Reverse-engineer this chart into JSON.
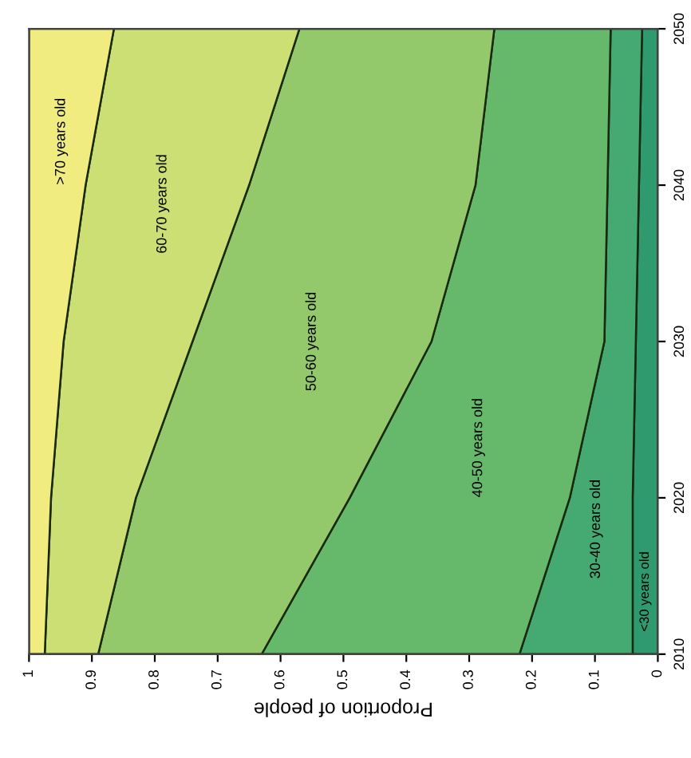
{
  "chart_data": {
    "type": "area",
    "stacked": true,
    "orientation": "horizontal",
    "xlabel": "Proportion of people",
    "categories": [
      "2050",
      "2040",
      "2030",
      "2020",
      "2010"
    ],
    "series": [
      {
        "name": "<30 years old",
        "color": "#2e9a6e",
        "values": [
          0.025,
          0.03,
          0.035,
          0.04,
          0.04
        ]
      },
      {
        "name": "30-40 years old",
        "color": "#45a972",
        "values": [
          0.05,
          0.05,
          0.05,
          0.1,
          0.18
        ]
      },
      {
        "name": "40-50 years old",
        "color": "#66b86a",
        "values": [
          0.185,
          0.21,
          0.275,
          0.35,
          0.41
        ]
      },
      {
        "name": "50-60 years old",
        "color": "#93c96b",
        "values": [
          0.31,
          0.36,
          0.38,
          0.34,
          0.26
        ]
      },
      {
        "name": "60-70 years old",
        "color": "#cbdf74",
        "values": [
          0.295,
          0.26,
          0.205,
          0.135,
          0.085
        ]
      },
      {
        "name": ">70 years old",
        "color": "#f0ec80",
        "values": [
          0.135,
          0.09,
          0.055,
          0.035,
          0.025
        ]
      }
    ],
    "xlim": [
      1,
      0
    ],
    "xticks": [
      1,
      0.9,
      0.8,
      0.7,
      0.6,
      0.5,
      0.4,
      0.3,
      0.2,
      0.1,
      0
    ],
    "legend": false,
    "grid": false
  }
}
